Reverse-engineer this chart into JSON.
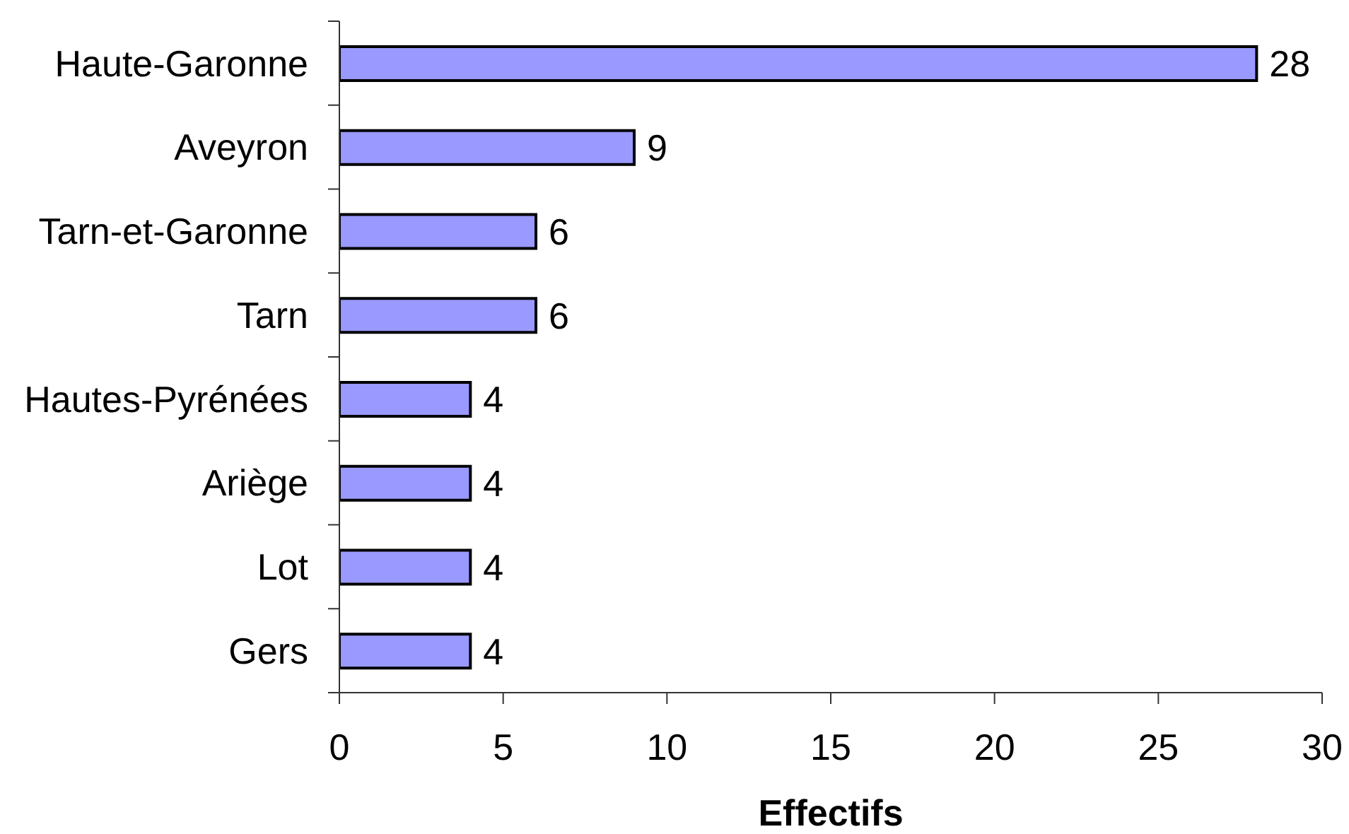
{
  "chart_data": {
    "type": "bar",
    "orientation": "horizontal",
    "categories": [
      "Haute-Garonne",
      "Aveyron",
      "Tarn-et-Garonne",
      "Tarn",
      "Hautes-Pyrénées",
      "Ariège",
      "Lot",
      "Gers"
    ],
    "values": [
      28,
      9,
      6,
      6,
      4,
      4,
      4,
      4
    ],
    "color": "#9999ff",
    "xlabel": "Effectifs",
    "xlim": [
      0,
      30
    ],
    "xticks": [
      0,
      5,
      10,
      15,
      20,
      25,
      30
    ],
    "data_labels": true
  }
}
